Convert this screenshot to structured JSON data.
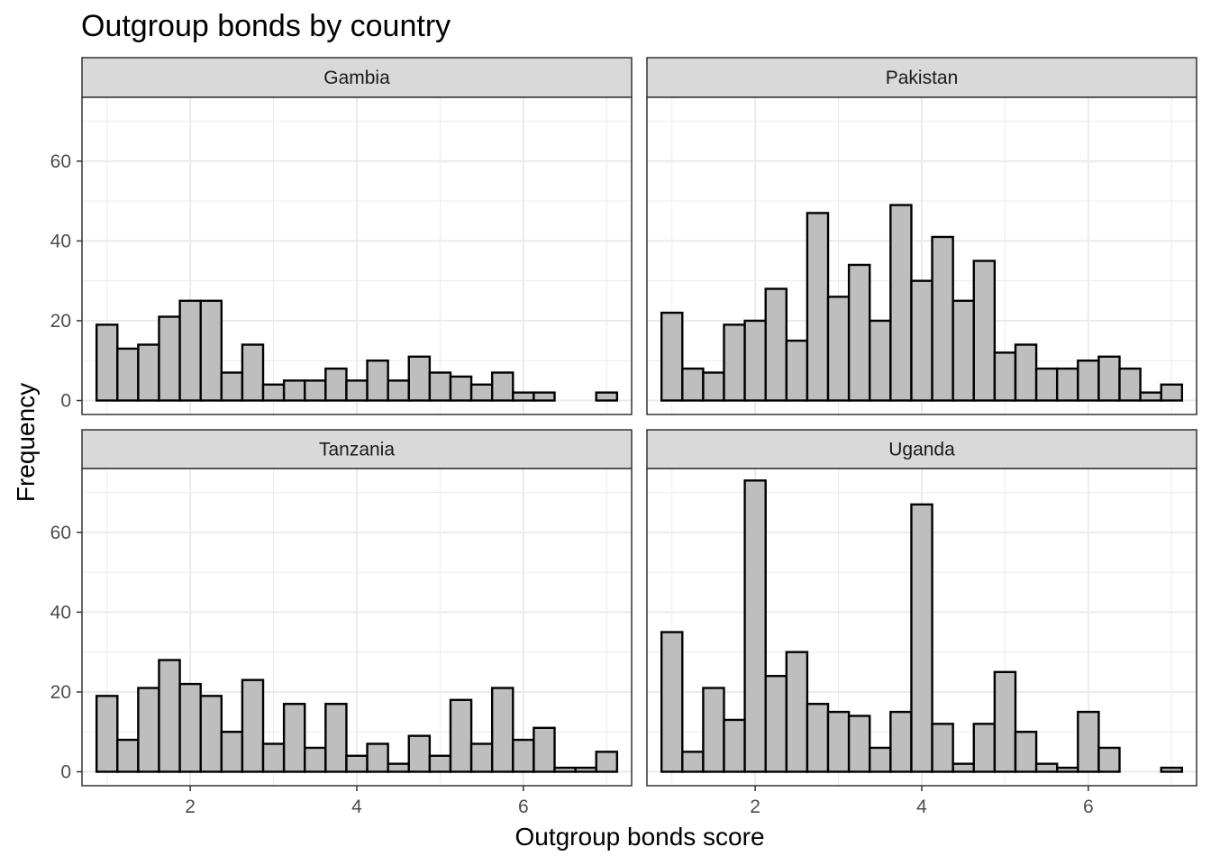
{
  "chart_data": {
    "type": "bar",
    "title": "Outgroup bonds by country",
    "xlabel": "Outgroup bonds score",
    "ylabel": "Frequency",
    "xlim": [
      0.7,
      7.3
    ],
    "ylim": [
      -3.5,
      76
    ],
    "x_ticks": [
      2,
      4,
      6
    ],
    "y_ticks": [
      0,
      20,
      40,
      60
    ],
    "grid": true,
    "bins": [
      1.0,
      1.25,
      1.5,
      1.75,
      2.0,
      2.25,
      2.5,
      2.75,
      3.0,
      3.25,
      3.5,
      3.75,
      4.0,
      4.25,
      4.5,
      4.75,
      5.0,
      5.25,
      5.5,
      5.75,
      6.0,
      6.25,
      6.5,
      6.75,
      7.0
    ],
    "bin_width": 0.25,
    "colors": {
      "bar_fill": "#bebebe",
      "bar_stroke": "#000000",
      "strip_fill": "#d9d9d9",
      "grid": "#ebebeb",
      "panel_border": "#333333"
    },
    "panels": [
      {
        "name": "Gambia",
        "values": [
          19,
          13,
          14,
          21,
          25,
          25,
          7,
          14,
          4,
          5,
          5,
          8,
          5,
          10,
          5,
          11,
          7,
          6,
          4,
          7,
          2,
          2,
          0,
          0,
          2
        ]
      },
      {
        "name": "Pakistan",
        "values": [
          22,
          8,
          7,
          19,
          20,
          28,
          15,
          47,
          26,
          34,
          20,
          49,
          30,
          41,
          25,
          35,
          12,
          14,
          8,
          8,
          10,
          11,
          8,
          2,
          4
        ]
      },
      {
        "name": "Tanzania",
        "values": [
          19,
          8,
          21,
          28,
          22,
          19,
          10,
          23,
          7,
          17,
          6,
          17,
          4,
          7,
          2,
          9,
          4,
          18,
          7,
          21,
          8,
          11,
          1,
          1,
          5
        ]
      },
      {
        "name": "Uganda",
        "values": [
          35,
          5,
          21,
          13,
          73,
          24,
          30,
          17,
          15,
          14,
          6,
          15,
          67,
          12,
          2,
          12,
          25,
          10,
          2,
          1,
          15,
          6,
          0,
          0,
          1
        ]
      }
    ]
  }
}
